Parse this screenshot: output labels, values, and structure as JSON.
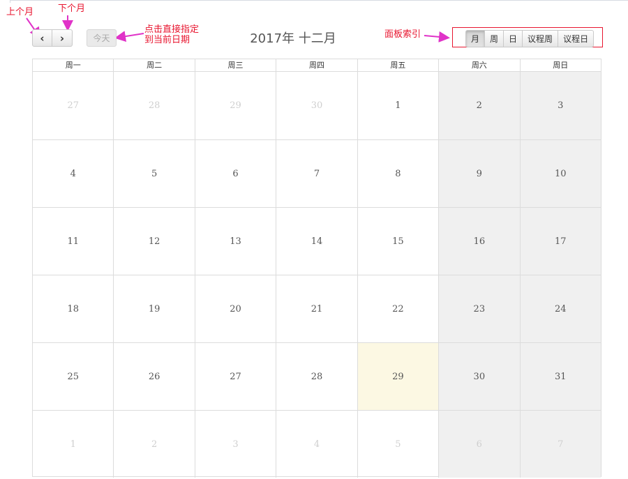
{
  "annotations": {
    "prev_month": "上个月",
    "next_month": "下个月",
    "today_hint_line1": "点击直接指定",
    "today_hint_line2": "到当前日期",
    "views_hint": "面板索引"
  },
  "toolbar": {
    "prev_icon": "‹",
    "next_icon": "›",
    "today_label": "今天",
    "title": "2017年 十二月",
    "views": [
      "月",
      "周",
      "日",
      "议程周",
      "议程日"
    ],
    "active_view": "月"
  },
  "calendar": {
    "weekdays": [
      "周一",
      "周二",
      "周三",
      "周四",
      "周五",
      "周六",
      "周日"
    ],
    "weeks": [
      [
        "27",
        "28",
        "29",
        "30",
        "1",
        "2",
        "3"
      ],
      [
        "4",
        "5",
        "6",
        "7",
        "8",
        "9",
        "10"
      ],
      [
        "11",
        "12",
        "13",
        "14",
        "15",
        "16",
        "17"
      ],
      [
        "18",
        "19",
        "20",
        "21",
        "22",
        "23",
        "24"
      ],
      [
        "25",
        "26",
        "27",
        "28",
        "29",
        "30",
        "31"
      ],
      [
        "1",
        "2",
        "3",
        "4",
        "5",
        "6",
        "7"
      ]
    ],
    "today": "29"
  },
  "colors": {
    "annotation": "#e8152f",
    "weekend_bg": "#f0f0f0",
    "today_bg": "#fcf8e3"
  }
}
